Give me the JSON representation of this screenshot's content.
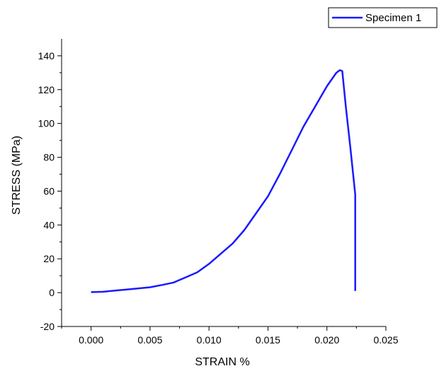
{
  "chart_data": {
    "type": "line",
    "xlabel": "STRAIN %",
    "ylabel": "STRESS (MPa)",
    "xlim": [
      -0.0025,
      0.025
    ],
    "ylim": [
      -20,
      150
    ],
    "xticks": [
      "0.000",
      "0.005",
      "0.010",
      "0.015",
      "0.020",
      "0.025"
    ],
    "yticks": [
      "-20",
      "0",
      "20",
      "40",
      "60",
      "80",
      "100",
      "120",
      "140"
    ],
    "legend_position": "top-right",
    "grid": false,
    "series": [
      {
        "name": "Specimen 1",
        "color": "#1a1aff",
        "x": [
          0.0,
          0.001,
          0.002,
          0.003,
          0.004,
          0.005,
          0.006,
          0.007,
          0.008,
          0.009,
          0.01,
          0.011,
          0.012,
          0.013,
          0.014,
          0.015,
          0.016,
          0.017,
          0.018,
          0.019,
          0.02,
          0.0208,
          0.0211,
          0.0213,
          0.0216,
          0.022,
          0.0224,
          0.0224,
          0.0224
        ],
        "y": [
          0.3,
          0.5,
          1.2,
          1.8,
          2.5,
          3.2,
          4.5,
          6.0,
          9.0,
          12.0,
          17.0,
          23.0,
          29.0,
          37.0,
          47.0,
          57.0,
          70.0,
          84.0,
          98.0,
          110.0,
          122.0,
          130.0,
          131.5,
          131.0,
          110.0,
          85.0,
          58.0,
          30.0,
          1.0
        ]
      }
    ]
  }
}
